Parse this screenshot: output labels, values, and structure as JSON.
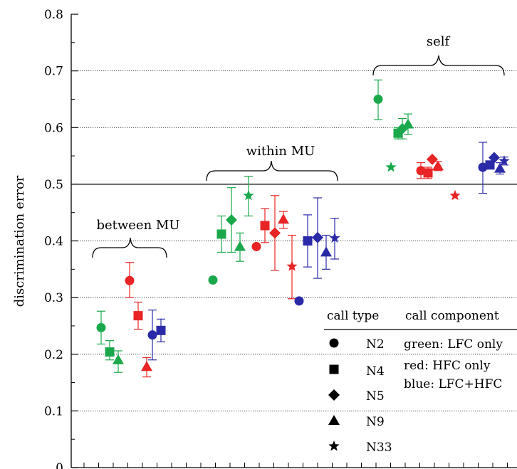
{
  "chart_data": {
    "type": "scatter",
    "ylabel": "discrimination error",
    "ylim": [
      0,
      0.8
    ],
    "yticks": [
      "0",
      "0.1",
      "0.2",
      "0.3",
      "0.4",
      "0.5",
      "0.6",
      "0.7",
      "0.8"
    ],
    "grid": "horizontal dotted at 0.1 intervals",
    "reference_line": 0.5,
    "groups": [
      {
        "label": "between MU"
      },
      {
        "label": "within MU"
      },
      {
        "label": "self"
      }
    ],
    "legend": {
      "placement": "bottom-right",
      "header_left": "call type",
      "header_right": "call component",
      "call_types": [
        "N2",
        "N4",
        "N5",
        "N9",
        "N33"
      ],
      "components": [
        "green: LFC only",
        "red: HFC only",
        "blue: LFC+HFC"
      ]
    },
    "colors": {
      "green": "#1aa84b",
      "red": "#e82424",
      "blue": "#2a2aa8"
    },
    "series": [
      {
        "group": "between MU",
        "component": "green",
        "type": "N2",
        "y": 0.247,
        "lo": 0.218,
        "hi": 0.276
      },
      {
        "group": "between MU",
        "component": "green",
        "type": "N4",
        "y": 0.204,
        "lo": 0.19,
        "hi": 0.224
      },
      {
        "group": "between MU",
        "component": "green",
        "type": "N9",
        "y": 0.19,
        "lo": 0.168,
        "hi": 0.206
      },
      {
        "group": "between MU",
        "component": "red",
        "type": "N2",
        "y": 0.33,
        "lo": 0.3,
        "hi": 0.362
      },
      {
        "group": "between MU",
        "component": "red",
        "type": "N4",
        "y": 0.268,
        "lo": 0.244,
        "hi": 0.292
      },
      {
        "group": "between MU",
        "component": "red",
        "type": "N9",
        "y": 0.178,
        "lo": 0.16,
        "hi": 0.194
      },
      {
        "group": "between MU",
        "component": "blue",
        "type": "N2",
        "y": 0.234,
        "lo": 0.19,
        "hi": 0.278
      },
      {
        "group": "between MU",
        "component": "blue",
        "type": "N4",
        "y": 0.242,
        "lo": 0.222,
        "hi": 0.262
      },
      {
        "group": "within MU",
        "component": "green",
        "type": "N2",
        "y": 0.331
      },
      {
        "group": "within MU",
        "component": "green",
        "type": "N4",
        "y": 0.412,
        "lo": 0.38,
        "hi": 0.444
      },
      {
        "group": "within MU",
        "component": "green",
        "type": "N5",
        "y": 0.437,
        "lo": 0.38,
        "hi": 0.494
      },
      {
        "group": "within MU",
        "component": "green",
        "type": "N9",
        "y": 0.39,
        "lo": 0.364,
        "hi": 0.414
      },
      {
        "group": "within MU",
        "component": "green",
        "type": "N33",
        "y": 0.48,
        "lo": 0.444,
        "hi": 0.514
      },
      {
        "group": "within MU",
        "component": "red",
        "type": "N2",
        "y": 0.39
      },
      {
        "group": "within MU",
        "component": "red",
        "type": "N4",
        "y": 0.427,
        "lo": 0.397,
        "hi": 0.457
      },
      {
        "group": "within MU",
        "component": "red",
        "type": "N5",
        "y": 0.414,
        "lo": 0.348,
        "hi": 0.48
      },
      {
        "group": "within MU",
        "component": "red",
        "type": "N9",
        "y": 0.438,
        "lo": 0.422,
        "hi": 0.452
      },
      {
        "group": "within MU",
        "component": "red",
        "type": "N33",
        "y": 0.355,
        "lo": 0.298,
        "hi": 0.41
      },
      {
        "group": "within MU",
        "component": "blue",
        "type": "N2",
        "y": 0.294
      },
      {
        "group": "within MU",
        "component": "blue",
        "type": "N4",
        "y": 0.4,
        "lo": 0.354,
        "hi": 0.446
      },
      {
        "group": "within MU",
        "component": "blue",
        "type": "N5",
        "y": 0.406,
        "lo": 0.334,
        "hi": 0.476
      },
      {
        "group": "within MU",
        "component": "blue",
        "type": "N9",
        "y": 0.38,
        "lo": 0.35,
        "hi": 0.41
      },
      {
        "group": "within MU",
        "component": "blue",
        "type": "N33",
        "y": 0.405,
        "lo": 0.368,
        "hi": 0.44
      },
      {
        "group": "self",
        "component": "green",
        "type": "N2",
        "y": 0.65,
        "lo": 0.614,
        "hi": 0.684
      },
      {
        "group": "self",
        "component": "green",
        "type": "N4",
        "y": 0.59,
        "lo": 0.58,
        "hi": 0.6
      },
      {
        "group": "self",
        "component": "green",
        "type": "N5",
        "y": 0.598,
        "lo": 0.58,
        "hi": 0.616
      },
      {
        "group": "self",
        "component": "green",
        "type": "N9",
        "y": 0.606,
        "lo": 0.588,
        "hi": 0.624
      },
      {
        "group": "self",
        "component": "green",
        "type": "N33",
        "y": 0.53
      },
      {
        "group": "self",
        "component": "red",
        "type": "N2",
        "y": 0.524,
        "lo": 0.51,
        "hi": 0.538
      },
      {
        "group": "self",
        "component": "red",
        "type": "N4",
        "y": 0.52,
        "lo": 0.51,
        "hi": 0.53
      },
      {
        "group": "self",
        "component": "red",
        "type": "N5",
        "y": 0.544
      },
      {
        "group": "self",
        "component": "red",
        "type": "N9",
        "y": 0.532,
        "lo": 0.524,
        "hi": 0.54
      },
      {
        "group": "self",
        "component": "red",
        "type": "N33",
        "y": 0.48
      },
      {
        "group": "self",
        "component": "blue",
        "type": "N2",
        "y": 0.53,
        "lo": 0.484,
        "hi": 0.574
      },
      {
        "group": "self",
        "component": "blue",
        "type": "N4",
        "y": 0.534
      },
      {
        "group": "self",
        "component": "blue",
        "type": "N5",
        "y": 0.547
      },
      {
        "group": "self",
        "component": "blue",
        "type": "N9",
        "y": 0.528,
        "lo": 0.518,
        "hi": 0.538
      },
      {
        "group": "self",
        "component": "blue",
        "type": "N33",
        "y": 0.541,
        "lo": 0.534,
        "hi": 0.548
      }
    ]
  }
}
